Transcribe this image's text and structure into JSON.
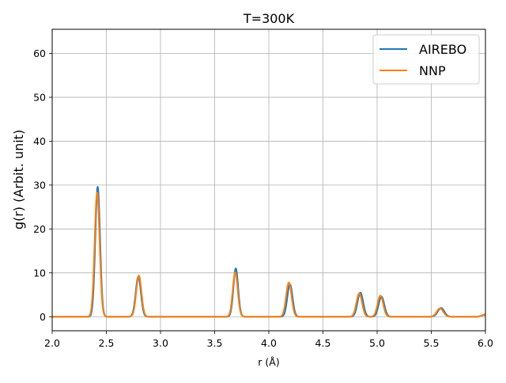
{
  "chart_data": {
    "type": "line",
    "title": "T=300K",
    "xlabel": "r (Å)",
    "ylabel": "g(r) (Arbit. unit)",
    "xlim": [
      2.0,
      6.0
    ],
    "ylim": [
      -3.2,
      65.5
    ],
    "xticks": [
      2.0,
      2.5,
      3.0,
      3.5,
      4.0,
      4.5,
      5.0,
      5.5,
      6.0
    ],
    "xtick_labels": [
      "2.0",
      "2.5",
      "3.0",
      "3.5",
      "4.0",
      "4.5",
      "5.0",
      "5.5",
      "6.0"
    ],
    "yticks": [
      0,
      10,
      20,
      30,
      40,
      50,
      60
    ],
    "ytick_labels": [
      "0",
      "10",
      "20",
      "30",
      "40",
      "50",
      "60"
    ],
    "grid": true,
    "legend_position": "top-right",
    "series": [
      {
        "name": "AIREBO",
        "color": "#1f77b4",
        "peaks": [
          {
            "center": 2.42,
            "height": 29.6,
            "width": 0.022
          },
          {
            "center": 2.795,
            "height": 9.1,
            "width": 0.024
          },
          {
            "center": 3.695,
            "height": 11.0,
            "width": 0.022
          },
          {
            "center": 4.195,
            "height": 7.4,
            "width": 0.024
          },
          {
            "center": 4.845,
            "height": 5.5,
            "width": 0.026
          },
          {
            "center": 5.04,
            "height": 4.6,
            "width": 0.026
          },
          {
            "center": 5.59,
            "height": 2.0,
            "width": 0.03
          }
        ],
        "tail": {
          "start": 5.93,
          "end": 6.0,
          "value": 0.5
        }
      },
      {
        "name": "NNP",
        "color": "#ff7f0e",
        "peaks": [
          {
            "center": 2.415,
            "height": 28.3,
            "width": 0.023
          },
          {
            "center": 2.8,
            "height": 9.4,
            "width": 0.024
          },
          {
            "center": 3.69,
            "height": 10.1,
            "width": 0.023
          },
          {
            "center": 4.185,
            "height": 7.8,
            "width": 0.025
          },
          {
            "center": 4.835,
            "height": 5.3,
            "width": 0.026
          },
          {
            "center": 5.03,
            "height": 4.8,
            "width": 0.026
          },
          {
            "center": 5.58,
            "height": 1.9,
            "width": 0.03
          }
        ],
        "tail": {
          "start": 5.93,
          "end": 6.0,
          "value": 0.6
        }
      }
    ]
  }
}
